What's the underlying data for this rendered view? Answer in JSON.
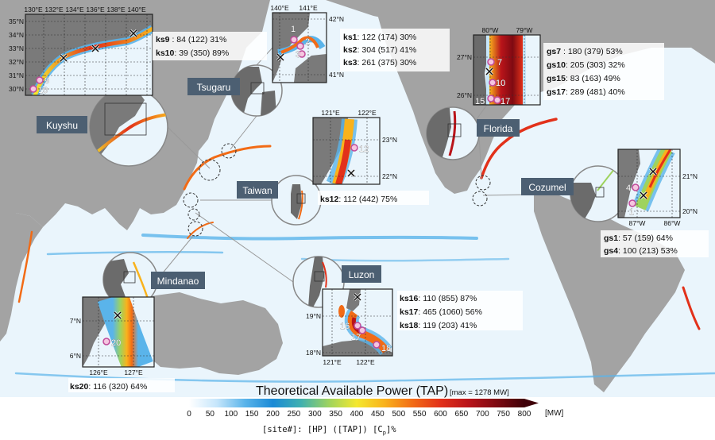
{
  "regions": {
    "kuyshu": "Kuyshu",
    "tsugaru": "Tsugaru",
    "taiwan": "Taiwan",
    "mindanao": "Mindanao",
    "luzon": "Luzon",
    "florida": "Florida",
    "cozumel": "Cozumel"
  },
  "ticks": {
    "kuyshu_top": [
      "130°E",
      "132°E",
      "134°E",
      "136°E",
      "138°E",
      "140°E"
    ],
    "kuyshu_left": [
      "35°N",
      "34°N",
      "33°N",
      "32°N",
      "31°N",
      "30°N"
    ],
    "tsugaru_top": [
      "140°E",
      "141°E"
    ],
    "tsugaru_right": [
      "42°N",
      "41°N"
    ],
    "florida_top": [
      "80°W",
      "79°W"
    ],
    "florida_left": [
      "27°N",
      "26°N"
    ],
    "taiwan_top": [
      "121°E",
      "122°E"
    ],
    "taiwan_right": [
      "23°N",
      "22°N"
    ],
    "cozumel_bottom": [
      "87°W",
      "86°W"
    ],
    "cozumel_right": [
      "21°N",
      "20°N"
    ],
    "mindanao_bottom": [
      "126°E",
      "127°E"
    ],
    "mindanao_left": [
      "7°N",
      "6°N"
    ],
    "luzon_bottom": [
      "121°E",
      "122°E"
    ],
    "luzon_left": [
      "19°N",
      "18°N"
    ]
  },
  "sites": {
    "kuyshu": [
      "9",
      "10"
    ],
    "tsugaru": [
      "1",
      "2",
      "3"
    ],
    "florida": [
      "7",
      "10",
      "15",
      "17"
    ],
    "taiwan": [
      "12"
    ],
    "cozumel": [
      "4",
      "1"
    ],
    "mindanao": [
      "20"
    ],
    "luzon": [
      "16",
      "17",
      "18"
    ]
  },
  "stats": {
    "kuyshu": [
      {
        "site": "ks9",
        "rest": " : 84 (122) 31%"
      },
      {
        "site": "ks10",
        "rest": ": 39 (350) 89%"
      }
    ],
    "tsugaru": [
      {
        "site": "ks1",
        "rest": ": 122 (174) 30%"
      },
      {
        "site": "ks2",
        "rest": ": 304 (517) 41%"
      },
      {
        "site": "ks3",
        "rest": ": 261 (375) 30%"
      }
    ],
    "florida": [
      {
        "site": "gs7",
        "rest": " : 180 (379) 53%"
      },
      {
        "site": "gs10",
        "rest": ": 205 (303) 32%"
      },
      {
        "site": "gs15",
        "rest": ":  83 (163) 49%"
      },
      {
        "site": "gs17",
        "rest": ": 289 (481) 40%"
      }
    ],
    "taiwan": [
      {
        "site": "ks12",
        "rest": ": 112 (442) 75%"
      }
    ],
    "cozumel": [
      {
        "site": "gs1",
        "rest": ":  57 (159) 64%"
      },
      {
        "site": "gs4",
        "rest": ": 100 (213) 53%"
      }
    ],
    "luzon": [
      {
        "site": "ks16",
        "rest": ": 110 (855)  87%"
      },
      {
        "site": "ks17",
        "rest": ": 465 (1060) 56%"
      },
      {
        "site": "ks18",
        "rest": ": 119 (203)  41%"
      }
    ],
    "mindanao": [
      {
        "site": "ks20",
        "rest": ": 116 (320) 64%"
      }
    ]
  },
  "colorbar": {
    "title": "Theoretical Available Power (TAP)",
    "max_note": "[max = 1278 MW]",
    "unit": "[MW]",
    "ticks": [
      "0",
      "50",
      "100",
      "150",
      "200",
      "250",
      "300",
      "350",
      "400",
      "450",
      "500",
      "550",
      "600",
      "650",
      "700",
      "750",
      "800"
    ],
    "colors": [
      "#ffffff",
      "#c6e6fb",
      "#5ab4ea",
      "#1a8ad6",
      "#3fb0b0",
      "#9ed35e",
      "#f4e82f",
      "#f9b21c",
      "#f26b16",
      "#e2311a",
      "#b9141a",
      "#7e0a12",
      "#3f0008"
    ],
    "legend": "[site#]: [HP] ([TAP]) [C",
    "legend_sub": "p",
    "legend_end": "]%"
  }
}
